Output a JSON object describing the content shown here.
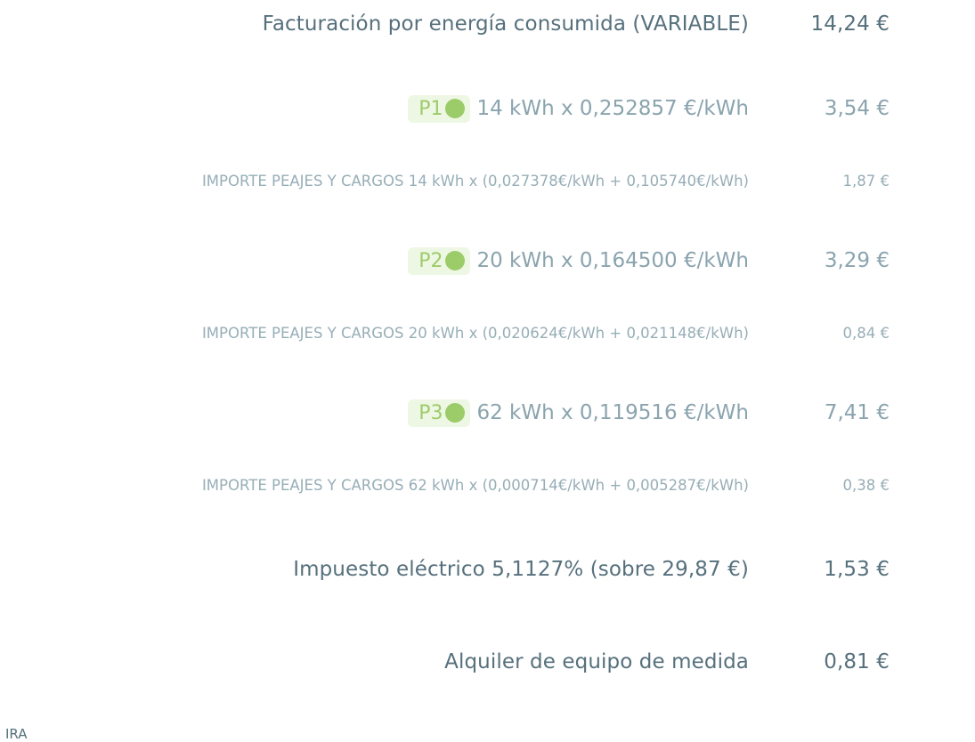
{
  "variable_billing": {
    "label": "Facturación por energía consumida (VARIABLE)",
    "amount": "14,24 €"
  },
  "periods": [
    {
      "badge": "P1",
      "detail": "14 kWh x 0,252857 €/kWh",
      "amount": "3,54 €",
      "tolls_label": "IMPORTE PEAJES Y CARGOS 14 kWh x (0,027378€/kWh + 0,105740€/kWh)",
      "tolls_amount": "1,87 €"
    },
    {
      "badge": "P2",
      "detail": "20 kWh x 0,164500 €/kWh",
      "amount": "3,29 €",
      "tolls_label": "IMPORTE PEAJES Y CARGOS 20 kWh x (0,020624€/kWh + 0,021148€/kWh)",
      "tolls_amount": "0,84 €"
    },
    {
      "badge": "P3",
      "detail": "62 kWh x 0,119516 €/kWh",
      "amount": "7,41 €",
      "tolls_label": "IMPORTE PEAJES Y CARGOS 62 kWh x (0,000714€/kWh + 0,005287€/kWh)",
      "tolls_amount": "0,38 €"
    }
  ],
  "electric_tax": {
    "label": "Impuesto eléctrico 5,1127% (sobre 29,87 €)",
    "amount": "1,53 €"
  },
  "meter_rental": {
    "label": "Alquiler de equipo de medida",
    "amount": "0,81 €"
  },
  "footer_fragment": "IRA",
  "colors": {
    "text_primary": "#56707c",
    "text_secondary": "#8aa4ae",
    "badge_bg": "#eef7e4",
    "badge_accent": "#9ccc6a"
  }
}
